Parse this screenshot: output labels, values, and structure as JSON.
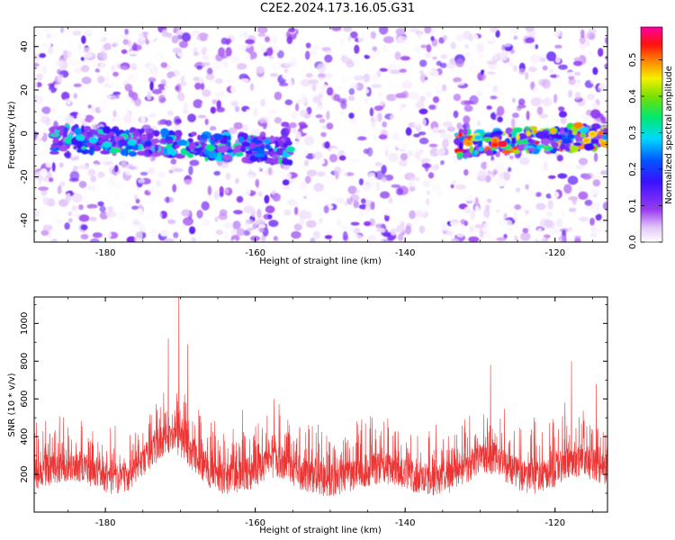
{
  "title": "C2E2.2024.173.16.05.G31",
  "chart_data": [
    {
      "type": "heatmap",
      "xlabel": "Height of straight line (km)",
      "ylabel": "Frequency (Hz)",
      "xlim": [
        -189.5,
        -113
      ],
      "ylim": [
        -50,
        49
      ],
      "x_ticks": [
        -180,
        -160,
        -140,
        -120
      ],
      "y_ticks": [
        -40,
        -20,
        0,
        20,
        40
      ],
      "colorbar": {
        "label": "Normalized spectral amplitude",
        "range": [
          0,
          0.59
        ],
        "ticks": [
          0.0,
          0.1,
          0.2,
          0.3,
          0.4,
          0.5
        ],
        "colormap": "white-violet-blue-cyan-green-yellow-red-magenta"
      },
      "features": [
        {
          "description": "signal band near 0 Hz",
          "x_range": [
            -187,
            -155
          ],
          "freq_start": -2,
          "freq_end": -8,
          "peak_amplitude": 0.35
        },
        {
          "description": "signal band near 0 Hz",
          "x_range": [
            -133,
            -113
          ],
          "freq_start": -5,
          "freq_end": -1,
          "peak_amplitude": 0.55
        }
      ],
      "grid": false
    },
    {
      "type": "line",
      "xlabel": "Height of straight line (km)",
      "ylabel": "SNR (10 * v/v)",
      "xlim": [
        -189.5,
        -113
      ],
      "ylim": [
        0,
        1140
      ],
      "x_ticks": [
        -180,
        -160,
        -140,
        -120
      ],
      "y_ticks": [
        200,
        400,
        600,
        800,
        1000
      ],
      "color": "#ee3333",
      "baseline_mean": 200,
      "peaks": [
        {
          "x": -171.6,
          "y": 920
        },
        {
          "x": -170.2,
          "y": 1140
        },
        {
          "x": -169.0,
          "y": 890
        },
        {
          "x": -157.5,
          "y": 600
        },
        {
          "x": -128.6,
          "y": 780
        },
        {
          "x": -117.8,
          "y": 800
        },
        {
          "x": -114.5,
          "y": 680
        }
      ],
      "grid": false
    }
  ]
}
